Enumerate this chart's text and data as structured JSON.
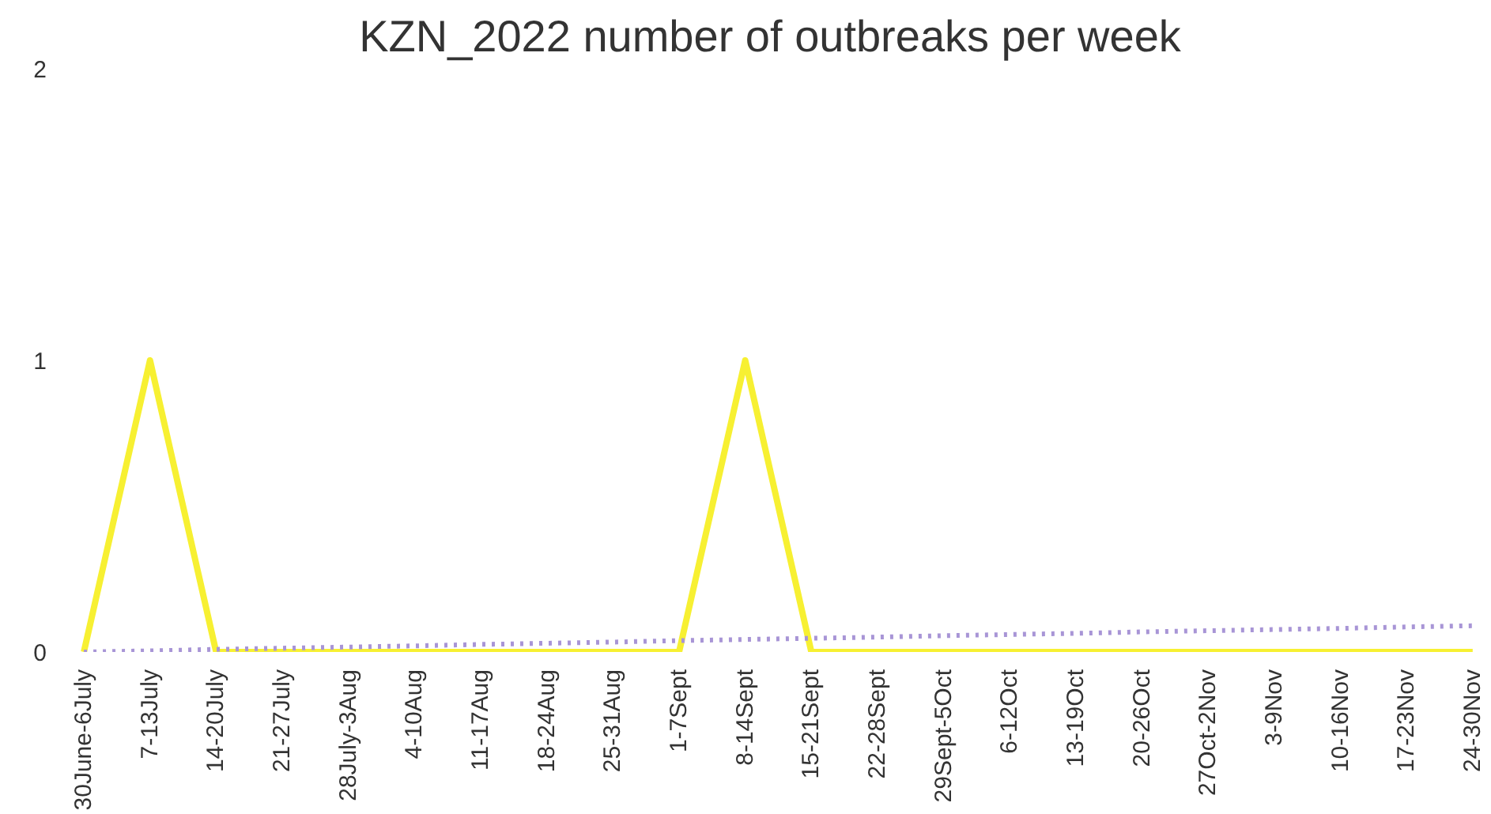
{
  "chart_data": {
    "type": "line",
    "title": "KZN_2022 number of outbreaks per week",
    "categories": [
      "30June-6July",
      "7-13July",
      "14-20July",
      "21-27July",
      "28July-3Aug",
      "4-10Aug",
      "11-17Aug",
      "18-24Aug",
      "25-31Aug",
      "1-7Sept",
      "8-14Sept",
      "15-21Sept",
      "22-28Sept",
      "29Sept-5Oct",
      "6-12Oct",
      "13-19Oct",
      "20-26Oct",
      "27Oct-2Nov",
      "3-9Nov",
      "10-16Nov",
      "17-23Nov",
      "24-30Nov"
    ],
    "series": [
      {
        "color": "#f7f032",
        "values": [
          0,
          1,
          0,
          0,
          0,
          0,
          0,
          0,
          0,
          0,
          1,
          0,
          0,
          0,
          0,
          0,
          0,
          0,
          0,
          0,
          0,
          0
        ]
      },
      {
        "color": "#a895d6",
        "line_style": "dotted",
        "values": [
          0,
          0.004,
          0.009,
          0.013,
          0.017,
          0.021,
          0.026,
          0.03,
          0.034,
          0.039,
          0.043,
          0.047,
          0.051,
          0.056,
          0.06,
          0.064,
          0.069,
          0.073,
          0.077,
          0.081,
          0.086,
          0.09
        ]
      }
    ],
    "ylim": [
      0,
      2
    ],
    "yticks": [
      0,
      1,
      2
    ],
    "grid": false,
    "marker": "none",
    "line_style": "solid"
  }
}
